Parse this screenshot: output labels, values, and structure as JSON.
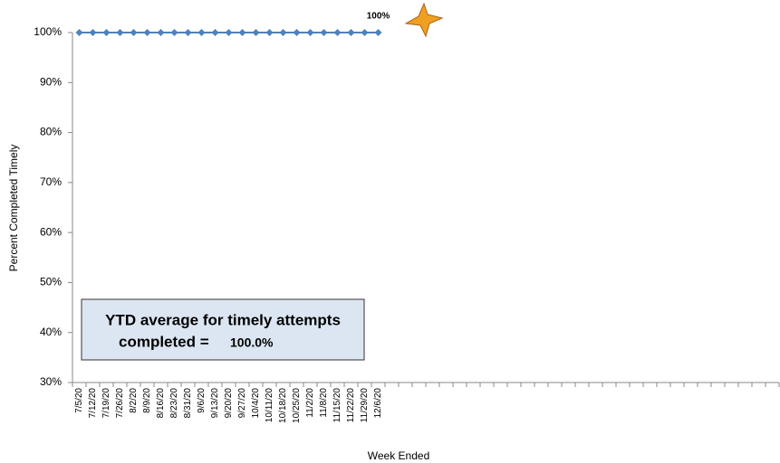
{
  "chart_data": {
    "type": "line",
    "y_label": "Percent Completed Timely",
    "x_label": "Week Ended",
    "categories": [
      "7/5/20",
      "7/12/20",
      "7/19/20",
      "7/26/20",
      "8/2/20",
      "8/9/20",
      "8/16/20",
      "8/23/20",
      "8/31/20",
      "9/6/20",
      "9/13/20",
      "9/20/20",
      "9/27/20",
      "10/4/20",
      "10/11/20",
      "10/18/20",
      "10/25/20",
      "11/2/20",
      "11/8/20",
      "11/15/20",
      "11/22/20",
      "11/29/20",
      "12/6/20",
      null,
      null,
      null,
      null,
      null,
      null,
      null,
      null,
      null,
      null,
      null,
      null,
      null,
      null,
      null,
      null,
      null,
      null,
      null,
      null,
      null,
      null,
      null,
      null,
      null,
      null,
      null,
      null,
      null
    ],
    "values": [
      100,
      100,
      100,
      100,
      100,
      100,
      100,
      100,
      100,
      100,
      100,
      100,
      100,
      100,
      100,
      100,
      100,
      100,
      100,
      100,
      100,
      100,
      100,
      null,
      null,
      null,
      null,
      null,
      null,
      null,
      null,
      null,
      null,
      null,
      null,
      null,
      null,
      null,
      null,
      null,
      null,
      null,
      null,
      null,
      null,
      null,
      null,
      null,
      null,
      null,
      null,
      null
    ],
    "value_labels": [
      null,
      null,
      null,
      null,
      null,
      null,
      null,
      null,
      null,
      null,
      null,
      null,
      null,
      null,
      null,
      null,
      null,
      null,
      null,
      null,
      null,
      null,
      "100%",
      null,
      null,
      null,
      null,
      null,
      null,
      null,
      null,
      null,
      null,
      null,
      null,
      null,
      null,
      null,
      null,
      null,
      null,
      null,
      null,
      null,
      null,
      null,
      null,
      null,
      null,
      null,
      null,
      null
    ],
    "color": "#4f81bd",
    "ylim": [
      30,
      100
    ],
    "yticks": [
      {
        "value": 30,
        "label": "30%"
      },
      {
        "value": 40,
        "label": "40%"
      },
      {
        "value": 50,
        "label": "50%"
      },
      {
        "value": 60,
        "label": "60%"
      },
      {
        "value": 70,
        "label": "70%"
      },
      {
        "value": 80,
        "label": "80%"
      },
      {
        "value": 90,
        "label": "90%"
      },
      {
        "value": 100,
        "label": "100%"
      }
    ],
    "grid": false,
    "annotation": {
      "lines": [
        "YTD average for timely attempts",
        "completed ="
      ],
      "value": "100.0%"
    }
  }
}
